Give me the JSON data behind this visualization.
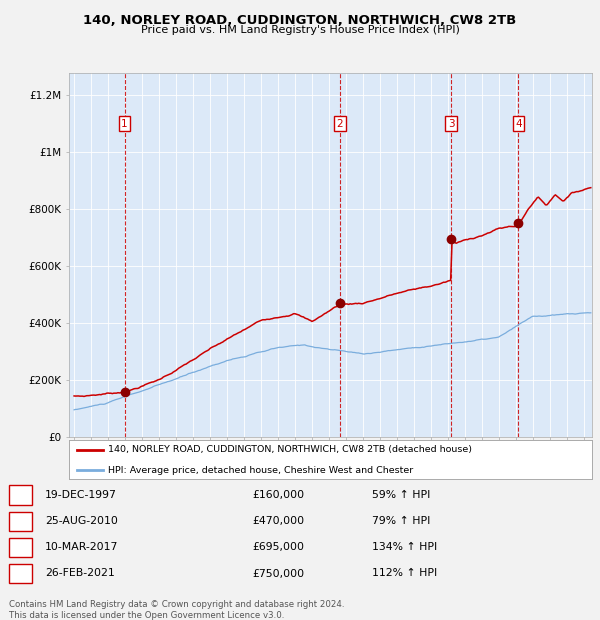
{
  "title1": "140, NORLEY ROAD, CUDDINGTON, NORTHWICH, CW8 2TB",
  "title2": "Price paid vs. HM Land Registry's House Price Index (HPI)",
  "legend_red": "140, NORLEY ROAD, CUDDINGTON, NORTHWICH, CW8 2TB (detached house)",
  "legend_blue": "HPI: Average price, detached house, Cheshire West and Chester",
  "footnote": "Contains HM Land Registry data © Crown copyright and database right 2024.\nThis data is licensed under the Open Government Licence v3.0.",
  "transactions": [
    {
      "num": 1,
      "date": "19-DEC-1997",
      "date_x": 1997.97,
      "price": 160000,
      "pct": "59%",
      "dir": "↑"
    },
    {
      "num": 2,
      "date": "25-AUG-2010",
      "date_x": 2010.65,
      "price": 470000,
      "pct": "79%",
      "dir": "↑"
    },
    {
      "num": 3,
      "date": "10-MAR-2017",
      "date_x": 2017.19,
      "price": 695000,
      "pct": "134%",
      "dir": "↑"
    },
    {
      "num": 4,
      "date": "26-FEB-2021",
      "date_x": 2021.16,
      "price": 750000,
      "pct": "112%",
      "dir": "↑"
    }
  ],
  "ylim": [
    0,
    1280000
  ],
  "xlim_start": 1994.7,
  "xlim_end": 2025.5,
  "bg_color": "#dce9f8",
  "fig_bg_color": "#f2f2f2",
  "red_line_color": "#cc0000",
  "blue_line_color": "#7aaddd",
  "dashed_vline_color": "#cc0000",
  "yticks": [
    0,
    200000,
    400000,
    600000,
    800000,
    1000000,
    1200000
  ],
  "ylabels": [
    "£0",
    "£200K",
    "£400K",
    "£600K",
    "£800K",
    "£1M",
    "£1.2M"
  ]
}
